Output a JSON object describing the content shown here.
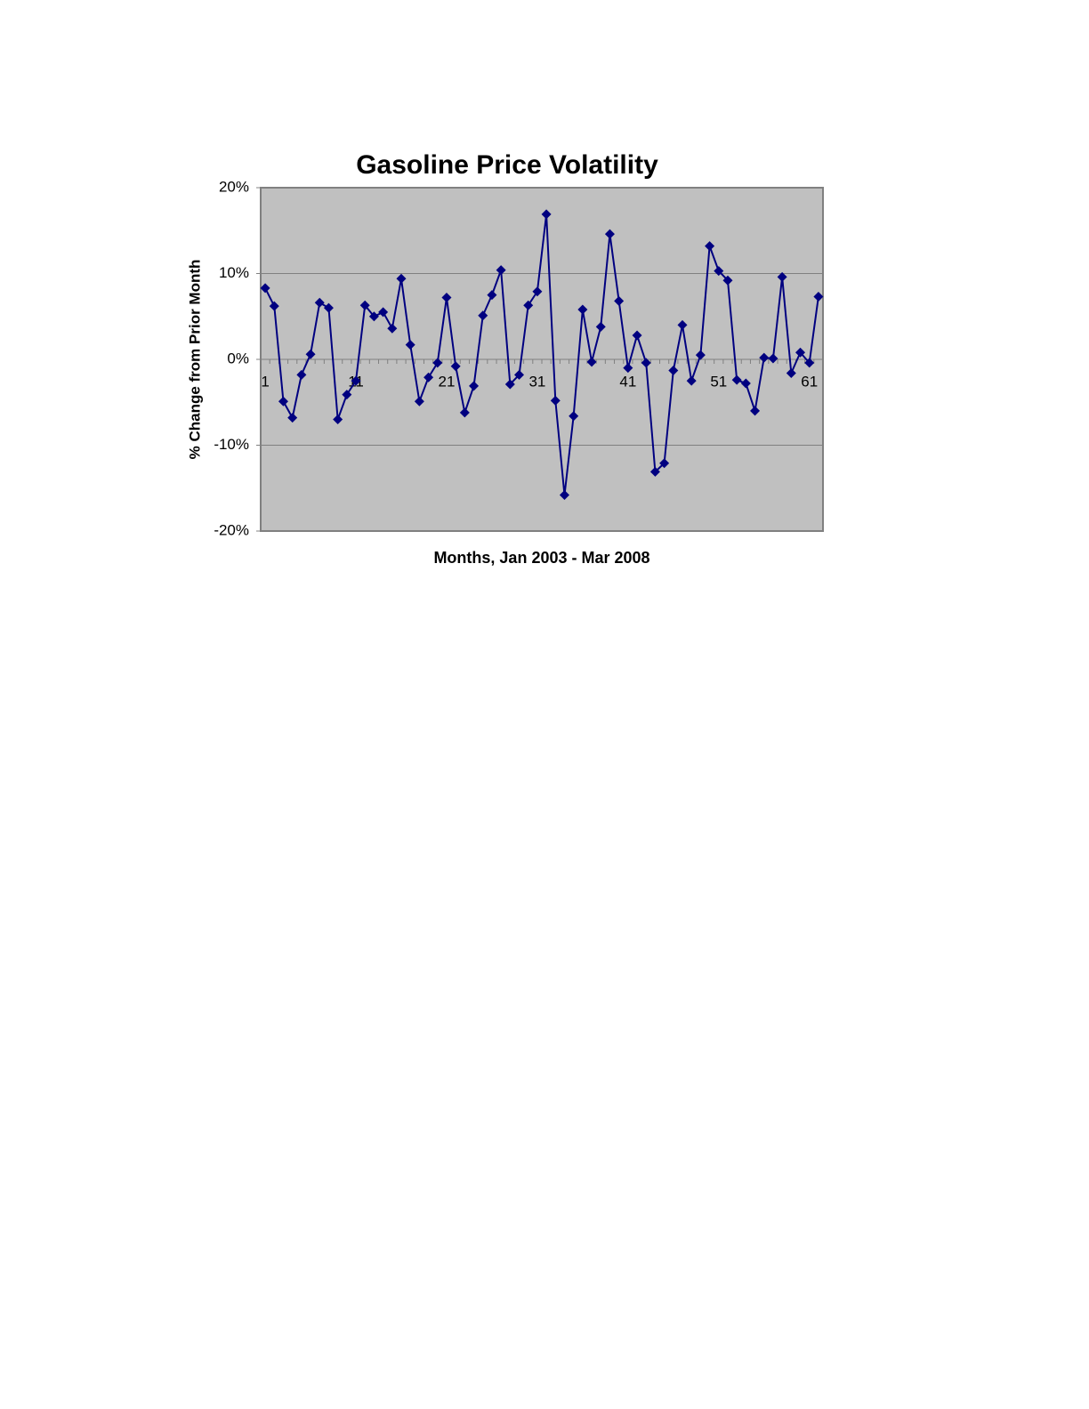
{
  "chart_data": {
    "type": "line",
    "title": "Gasoline Price Volatility",
    "x_label": "Months, Jan 2003 - Mar 2008",
    "y_label": "% Change from Prior Month",
    "categories": [
      "1",
      null,
      null,
      null,
      null,
      null,
      null,
      null,
      null,
      null,
      "11",
      null,
      null,
      null,
      null,
      null,
      null,
      null,
      null,
      null,
      "21",
      null,
      null,
      null,
      null,
      null,
      null,
      null,
      null,
      null,
      "31",
      null,
      null,
      null,
      null,
      null,
      null,
      null,
      null,
      null,
      "41",
      null,
      null,
      null,
      null,
      null,
      null,
      null,
      null,
      null,
      "51",
      null,
      null,
      null,
      null,
      null,
      null,
      null,
      null,
      null,
      "61",
      null
    ],
    "series": [
      {
        "name": "% Change",
        "color": "#000080",
        "values": [
          8.3,
          6.2,
          -4.9,
          -6.8,
          -1.8,
          0.6,
          6.6,
          6.0,
          -7.0,
          -4.1,
          -2.5,
          6.3,
          5.0,
          5.5,
          3.6,
          9.4,
          1.7,
          -4.9,
          -2.1,
          -0.4,
          7.2,
          -0.8,
          -6.2,
          -3.1,
          5.1,
          7.5,
          10.4,
          -2.9,
          -1.8,
          6.3,
          7.9,
          16.9,
          -4.8,
          -15.8,
          -6.6,
          5.8,
          -0.3,
          3.8,
          14.6,
          6.8,
          -1.0,
          2.8,
          -0.4,
          -13.1,
          -12.1,
          -1.3,
          4.0,
          -2.5,
          0.5,
          13.2,
          10.3,
          9.2,
          -2.4,
          -2.8,
          -6.0,
          0.2,
          0.1,
          9.6,
          -1.6,
          0.8,
          -0.4,
          7.3
        ]
      }
    ],
    "ylim": [
      -20,
      20
    ],
    "yticks": [
      {
        "value": -20,
        "label": "-20%"
      },
      {
        "value": -10,
        "label": "-10%"
      },
      {
        "value": 0,
        "label": "0%"
      },
      {
        "value": 10,
        "label": "10%"
      },
      {
        "value": 20,
        "label": "20%"
      }
    ],
    "grid": true,
    "plot_background": "#c0c0c0"
  }
}
